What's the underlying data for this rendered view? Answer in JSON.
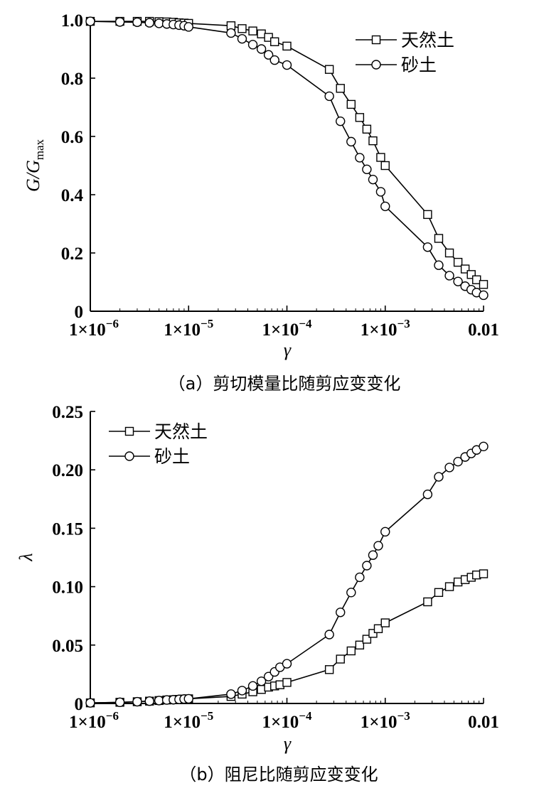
{
  "chart_data": [
    {
      "type": "line",
      "caption": "（a）剪切模量比随剪应变变化",
      "xlabel": "γ",
      "ylabel_main": "G/G",
      "ylabel_sub": "max",
      "xscale": "log",
      "xlim": [
        1e-06,
        0.01
      ],
      "ylim": [
        0,
        1.0
      ],
      "xticks": [
        {
          "value": 1e-06,
          "base": "1×10",
          "exp": "−6"
        },
        {
          "value": 1e-05,
          "base": "1×10",
          "exp": "−5"
        },
        {
          "value": 0.0001,
          "base": "1×10",
          "exp": "−4"
        },
        {
          "value": 0.001,
          "base": "1×10",
          "exp": "−3"
        },
        {
          "value": 0.01,
          "base": "0.01",
          "exp": ""
        }
      ],
      "yticks": [
        {
          "value": 0,
          "label": "0"
        },
        {
          "value": 0.2,
          "label": "0.2"
        },
        {
          "value": 0.4,
          "label": "0.4"
        },
        {
          "value": 0.6,
          "label": "0.6"
        },
        {
          "value": 0.8,
          "label": "0.8"
        },
        {
          "value": 1.0,
          "label": "1.0"
        }
      ],
      "legend_position": "top-right",
      "series": [
        {
          "name": "天然土",
          "marker": "square",
          "x": [
            1e-06,
            2e-06,
            3e-06,
            4e-06,
            5e-06,
            6e-06,
            7e-06,
            8e-06,
            9e-06,
            1e-05,
            2.7e-05,
            3.5e-05,
            4.5e-05,
            5.5e-05,
            6.5e-05,
            7.5e-05,
            0.0001,
            0.00027,
            0.00035,
            0.00045,
            0.00055,
            0.00065,
            0.00075,
            0.0009,
            0.001,
            0.0027,
            0.0035,
            0.0045,
            0.0055,
            0.0065,
            0.0075,
            0.0085,
            0.01
          ],
          "y": [
            0.995,
            0.995,
            0.995,
            0.995,
            0.994,
            0.993,
            0.992,
            0.99,
            0.989,
            0.988,
            0.98,
            0.97,
            0.962,
            0.952,
            0.94,
            0.925,
            0.91,
            0.83,
            0.765,
            0.71,
            0.665,
            0.625,
            0.585,
            0.528,
            0.5,
            0.332,
            0.25,
            0.2,
            0.168,
            0.145,
            0.126,
            0.108,
            0.092
          ]
        },
        {
          "name": "砂土",
          "marker": "circle",
          "x": [
            1e-06,
            2e-06,
            3e-06,
            4e-06,
            5e-06,
            6e-06,
            7e-06,
            8e-06,
            9e-06,
            1e-05,
            2.7e-05,
            3.5e-05,
            4.5e-05,
            5.5e-05,
            6.5e-05,
            7.5e-05,
            0.0001,
            0.00027,
            0.00035,
            0.00045,
            0.00055,
            0.00065,
            0.00075,
            0.0009,
            0.001,
            0.0027,
            0.0035,
            0.0045,
            0.0055,
            0.0065,
            0.0075,
            0.0085,
            0.01
          ],
          "y": [
            0.995,
            0.993,
            0.992,
            0.99,
            0.988,
            0.986,
            0.984,
            0.982,
            0.98,
            0.976,
            0.955,
            0.935,
            0.915,
            0.9,
            0.88,
            0.862,
            0.845,
            0.738,
            0.652,
            0.582,
            0.527,
            0.487,
            0.452,
            0.41,
            0.36,
            0.22,
            0.158,
            0.122,
            0.102,
            0.086,
            0.074,
            0.064,
            0.055
          ]
        }
      ]
    },
    {
      "type": "line",
      "caption": "（b）阻尼比随剪应变变化",
      "xlabel": "γ",
      "ylabel_main": "λ",
      "ylabel_sub": "",
      "xscale": "log",
      "xlim": [
        1e-06,
        0.01
      ],
      "ylim": [
        0,
        0.25
      ],
      "xticks": [
        {
          "value": 1e-06,
          "base": "1×10",
          "exp": "−6"
        },
        {
          "value": 1e-05,
          "base": "1×10",
          "exp": "−5"
        },
        {
          "value": 0.0001,
          "base": "1×10",
          "exp": "−4"
        },
        {
          "value": 0.001,
          "base": "1×10",
          "exp": "−3"
        },
        {
          "value": 0.01,
          "base": "0.01",
          "exp": ""
        }
      ],
      "yticks": [
        {
          "value": 0,
          "label": "0"
        },
        {
          "value": 0.05,
          "label": "0.05"
        },
        {
          "value": 0.1,
          "label": "0.10"
        },
        {
          "value": 0.15,
          "label": "0.15"
        },
        {
          "value": 0.2,
          "label": "0.20"
        },
        {
          "value": 0.25,
          "label": "0.25"
        }
      ],
      "legend_position": "top-left",
      "series": [
        {
          "name": "天然土",
          "marker": "square",
          "x": [
            1e-06,
            2e-06,
            3e-06,
            4e-06,
            5e-06,
            6e-06,
            7e-06,
            8e-06,
            9e-06,
            1e-05,
            2.7e-05,
            3.5e-05,
            4.5e-05,
            5.5e-05,
            6.5e-05,
            7.5e-05,
            8.5e-05,
            0.0001,
            0.00027,
            0.00035,
            0.00045,
            0.00055,
            0.00065,
            0.00075,
            0.00085,
            0.001,
            0.0027,
            0.0035,
            0.0045,
            0.0055,
            0.0065,
            0.0075,
            0.0085,
            0.01
          ],
          "y": [
            0.0005,
            0.001,
            0.0015,
            0.002,
            0.0025,
            0.003,
            0.0032,
            0.0035,
            0.0038,
            0.004,
            0.006,
            0.008,
            0.01,
            0.012,
            0.014,
            0.015,
            0.016,
            0.018,
            0.029,
            0.038,
            0.045,
            0.05,
            0.055,
            0.06,
            0.064,
            0.069,
            0.087,
            0.095,
            0.1,
            0.104,
            0.106,
            0.108,
            0.11,
            0.111
          ]
        },
        {
          "name": "砂土",
          "marker": "circle",
          "x": [
            1e-06,
            2e-06,
            3e-06,
            4e-06,
            5e-06,
            6e-06,
            7e-06,
            8e-06,
            9e-06,
            1e-05,
            2.7e-05,
            3.5e-05,
            4.5e-05,
            5.5e-05,
            6.5e-05,
            7.5e-05,
            8.5e-05,
            0.0001,
            0.00027,
            0.00035,
            0.00045,
            0.00055,
            0.00065,
            0.00075,
            0.00085,
            0.001,
            0.0027,
            0.0035,
            0.0045,
            0.0055,
            0.0065,
            0.0075,
            0.0085,
            0.01
          ],
          "y": [
            0.0005,
            0.001,
            0.0015,
            0.002,
            0.0025,
            0.003,
            0.0032,
            0.0035,
            0.0038,
            0.004,
            0.008,
            0.011,
            0.015,
            0.019,
            0.023,
            0.027,
            0.031,
            0.034,
            0.059,
            0.078,
            0.095,
            0.108,
            0.118,
            0.127,
            0.135,
            0.147,
            0.179,
            0.194,
            0.202,
            0.207,
            0.211,
            0.214,
            0.217,
            0.22
          ]
        }
      ]
    }
  ]
}
